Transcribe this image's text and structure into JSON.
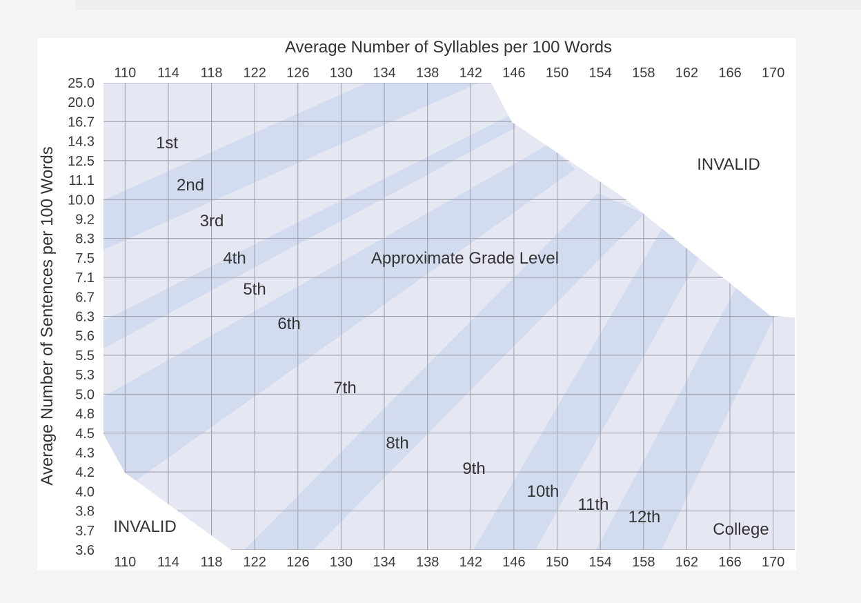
{
  "colors": {
    "page_background": "#f5f5f5",
    "card_background": "#ffffff",
    "valid_region": "#e5e7f3",
    "grade_band": "#d3dbef",
    "grid_line": "#9a9ca8",
    "text": "#333333"
  },
  "chart_data": {
    "type": "area",
    "title": "Approximate Grade Level",
    "xlabel": "Average Number of Syllables per 100 Words",
    "ylabel": "Average Number of Sentences per 100 Words",
    "x_ticks": [
      "110",
      "114",
      "118",
      "122",
      "126",
      "130",
      "134",
      "138",
      "142",
      "146",
      "150",
      "154",
      "158",
      "162",
      "166",
      "170"
    ],
    "y_ticks": [
      "25.0",
      "20.0",
      "16.7",
      "14.3",
      "12.5",
      "11.1",
      "10.0",
      "9.2",
      "8.3",
      "7.5",
      "7.1",
      "6.7",
      "6.3",
      "5.6",
      "5.5",
      "5.3",
      "5.0",
      "4.8",
      "4.5",
      "4.3",
      "4.2",
      "4.0",
      "3.8",
      "3.7",
      "3.6"
    ],
    "x_range": [
      108,
      172
    ],
    "y_range": [
      "3.6",
      "25.0"
    ],
    "grid": true,
    "x_axis_ticks_shown": "top and bottom",
    "grade_levels": [
      {
        "label": "1st",
        "shaded": false
      },
      {
        "label": "2nd",
        "shaded": true
      },
      {
        "label": "3rd",
        "shaded": false
      },
      {
        "label": "4th",
        "shaded": true
      },
      {
        "label": "5th",
        "shaded": false
      },
      {
        "label": "6th",
        "shaded": true
      },
      {
        "label": "7th",
        "shaded": false
      },
      {
        "label": "8th",
        "shaded": true
      },
      {
        "label": "9th",
        "shaded": false
      },
      {
        "label": "10th",
        "shaded": true
      },
      {
        "label": "11th",
        "shaded": false
      },
      {
        "label": "12th",
        "shaded": true
      },
      {
        "label": "College",
        "shaded": false
      }
    ],
    "invalid_regions": [
      {
        "label": "INVALID",
        "location": "upper-right"
      },
      {
        "label": "INVALID",
        "location": "lower-left"
      }
    ]
  }
}
